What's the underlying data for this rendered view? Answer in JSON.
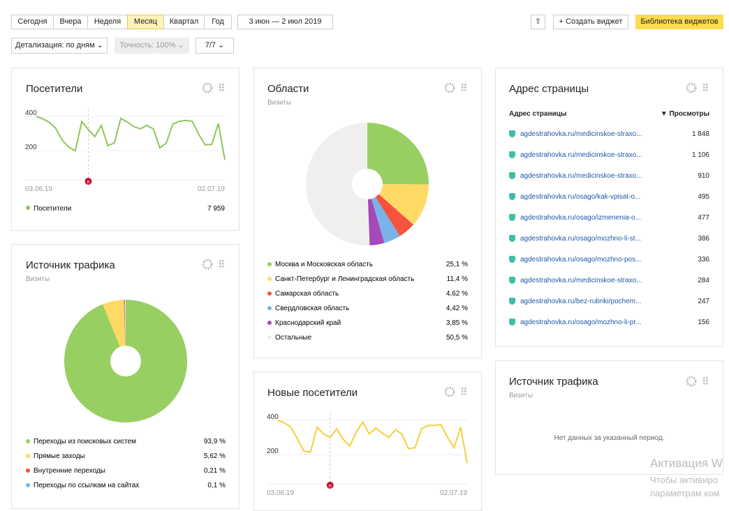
{
  "toolbar": {
    "periods": [
      "Сегодня",
      "Вчера",
      "Неделя",
      "Месяц",
      "Квартал",
      "Год"
    ],
    "active_period": 3,
    "date_range": "3 июн — 2 июл 2019",
    "create_widget": "Создать виджет",
    "library": "Библиотека виджетов",
    "detail": "Детализация: по дням",
    "accuracy": "Точность: 100%",
    "segments": "7/7"
  },
  "visitors": {
    "title": "Посетители",
    "chart": {
      "type": "line",
      "color": "#8fc657",
      "values": [
        400,
        385,
        365,
        330,
        260,
        220,
        200,
        370,
        322,
        282,
        347,
        229,
        245,
        388,
        367,
        340,
        327,
        347,
        327,
        216,
        245,
        355,
        371,
        376,
        371,
        294,
        233,
        237,
        359,
        147
      ],
      "ylim": [
        30,
        440
      ],
      "yticks": [
        200,
        400
      ],
      "x_labels": [
        "03.06.19",
        "02.07.19"
      ],
      "marker": {
        "label": "н",
        "index": 8
      }
    },
    "legend": {
      "name": "Посетители",
      "total": "7 959"
    }
  },
  "regions": {
    "title": "Области",
    "subtitle": "Визиты",
    "chart": {
      "type": "pie",
      "series": [
        {
          "name": "Москва и Московская область",
          "value": 25.1,
          "label": "25,1 %",
          "color": "#98cf62"
        },
        {
          "name": "Санкт-Петербург и Ленинградская область",
          "value": 11.4,
          "label": "11,4 %",
          "color": "#ffd966"
        },
        {
          "name": "Самарская область",
          "value": 4.62,
          "label": "4,62 %",
          "color": "#f5533d"
        },
        {
          "name": "Свердловская область",
          "value": 4.42,
          "label": "4,42 %",
          "color": "#7ab3e8"
        },
        {
          "name": "Краснодарский край",
          "value": 3.85,
          "label": "3,85 %",
          "color": "#a449b7"
        },
        {
          "name": "Остальные",
          "value": 50.5,
          "label": "50,5 %",
          "color": "#f0efed"
        }
      ]
    }
  },
  "pages": {
    "title": "Адрес страницы",
    "columns": [
      "Адрес страницы",
      "▼ Просмотры"
    ],
    "rows": [
      [
        "agdestrahovka.ru/medicinskoe-straxo...",
        "1 848"
      ],
      [
        "agdestrahovka.ru/medicinskoe-straxo...",
        "1 106"
      ],
      [
        "agdestrahovka.ru/medicinskoe-straxo...",
        "910"
      ],
      [
        "agdestrahovka.ru/osago/kak-vpisat-o...",
        "495"
      ],
      [
        "agdestrahovka.ru/osago/izmenenia-o...",
        "477"
      ],
      [
        "agdestrahovka.ru/osago/mozhno-li-st...",
        "386"
      ],
      [
        "agdestrahovka.ru/osago/mozhno-pos...",
        "336"
      ],
      [
        "agdestrahovka.ru/medicinskoe-straxo...",
        "284"
      ],
      [
        "agdestrahovka.ru/bez-rubriki/pochem...",
        "247"
      ],
      [
        "agdestrahovka.ru/osago/mozhno-li-pr...",
        "156"
      ]
    ]
  },
  "traffic": {
    "title": "Источник трафика",
    "subtitle": "Визиты",
    "chart": {
      "type": "pie",
      "series": [
        {
          "name": "Переходы из поисковых систем",
          "value": 93.9,
          "label": "93,9 %",
          "color": "#98cf62"
        },
        {
          "name": "Прямые заходы",
          "value": 5.62,
          "label": "5,62 %",
          "color": "#ffd966"
        },
        {
          "name": "Внутренние переходы",
          "value": 0.21,
          "label": "0,21 %",
          "color": "#f5533d"
        },
        {
          "name": "Переходы по ссылкам на сайтах",
          "value": 0.1,
          "label": "0,1 %",
          "color": "#7ab3e8"
        }
      ]
    }
  },
  "new_visitors": {
    "title": "Новые посетители",
    "chart": {
      "type": "line",
      "color": "#f5cf3a",
      "values": [
        400,
        385,
        360,
        290,
        220,
        215,
        360,
        320,
        300,
        350,
        290,
        250,
        330,
        390,
        320,
        355,
        325,
        300,
        345,
        320,
        235,
        240,
        350,
        370,
        370,
        375,
        300,
        240,
        360,
        150
      ],
      "ylim": [
        30,
        440
      ],
      "yticks": [
        200,
        400
      ],
      "x_labels": [
        "03.06.19",
        "02.07.19"
      ],
      "marker": {
        "label": "н",
        "index": 8
      }
    }
  },
  "traffic2": {
    "title": "Источник трафика",
    "subtitle": "Визиты",
    "empty": "Нет данных за указанный период."
  },
  "watermark": [
    "Активация W",
    "Чтобы активиро",
    "параметрам ком"
  ]
}
